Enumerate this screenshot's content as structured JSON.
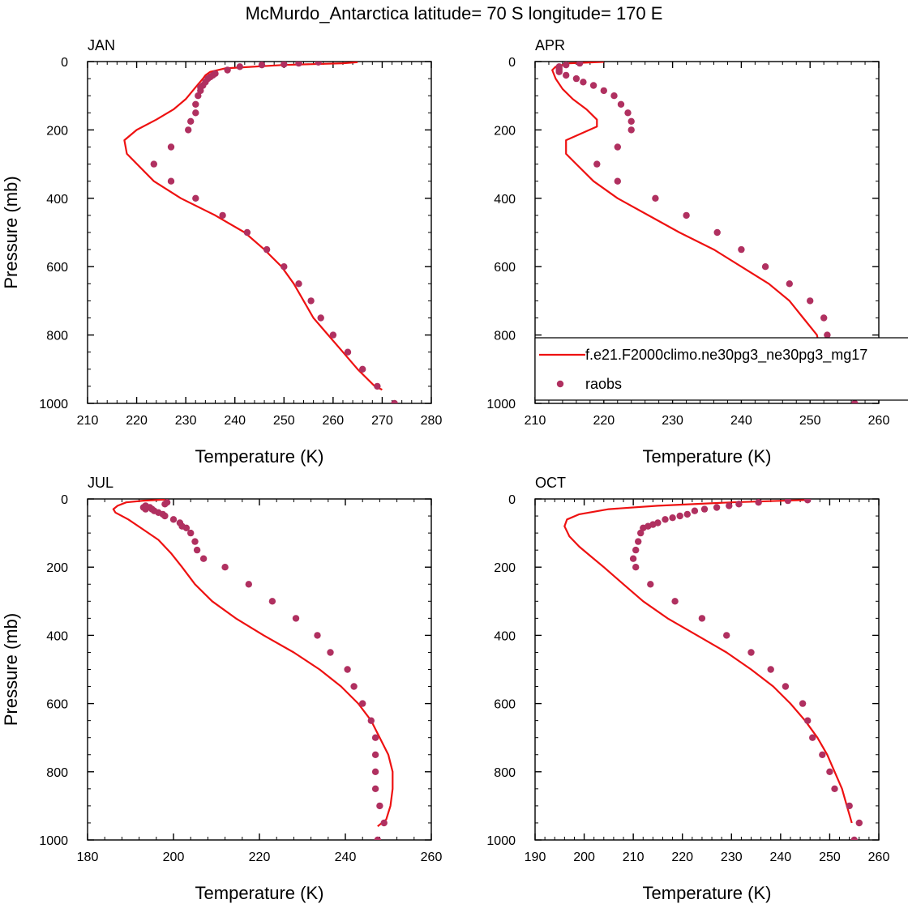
{
  "title": "McMurdo_Antarctica  latitude= 70 S longitude= 170 E",
  "colors": {
    "model_line": "#ee1111",
    "raobs_marker": "#b03060",
    "axis": "#000000"
  },
  "legend": {
    "items": [
      {
        "label": "f.e21.F2000climo.ne30pg3_ne30pg3_mg17",
        "style": "line"
      },
      {
        "label": "raobs",
        "style": "marker"
      }
    ]
  },
  "chart_data": [
    {
      "type": "line",
      "panel_label": "JAN",
      "xlabel": "Temperature (K)",
      "ylabel": "Pressure (mb)",
      "xlim": [
        210,
        280
      ],
      "ylim": [
        1000,
        0
      ],
      "y_reversed": true,
      "xticks": [
        210,
        220,
        230,
        240,
        250,
        260,
        270,
        280
      ],
      "yticks": [
        0,
        200,
        400,
        600,
        800,
        1000
      ],
      "series": [
        {
          "name": "f.e21.F2000climo.ne30pg3_ne30pg3_mg17",
          "style": "line",
          "x": [
            270.0,
            268.5,
            265.0,
            262.0,
            259.0,
            256.0,
            252.0,
            249.5,
            246.0,
            242.0,
            236.0,
            229.0,
            223.5,
            218.0,
            217.5,
            220.0,
            224.0,
            227.5,
            230.0,
            232.0,
            233.5,
            234.0,
            235.0,
            238.0,
            250.0,
            262.0,
            265.0
          ],
          "y": [
            960,
            950,
            900,
            850,
            800,
            750,
            650,
            600,
            550,
            500,
            450,
            400,
            350,
            270,
            230,
            200,
            170,
            140,
            110,
            75,
            50,
            40,
            30,
            20,
            10,
            5,
            2
          ]
        },
        {
          "name": "raobs",
          "style": "marker",
          "x": [
            272.5,
            269.0,
            266.0,
            263.0,
            260.0,
            257.5,
            255.5,
            253.0,
            250.0,
            246.5,
            242.5,
            237.5,
            232.0,
            227.0,
            223.5,
            227.0,
            230.5,
            231.0,
            232.0,
            232.0,
            232.5,
            233.0,
            233.0,
            233.5,
            234.0,
            234.5,
            235.0,
            235.5,
            236.0,
            238.5,
            241.0,
            245.5,
            250.0,
            253.0,
            257.0
          ],
          "y": [
            1000,
            950,
            900,
            850,
            800,
            750,
            700,
            650,
            600,
            550,
            500,
            450,
            400,
            350,
            300,
            250,
            200,
            175,
            150,
            125,
            100,
            85,
            75,
            70,
            60,
            50,
            45,
            40,
            35,
            25,
            15,
            10,
            8,
            5,
            2
          ]
        }
      ]
    },
    {
      "type": "line",
      "panel_label": "APR",
      "xlabel": "Temperature (K)",
      "ylabel": "",
      "xlim": [
        210,
        260
      ],
      "ylim": [
        1000,
        0
      ],
      "y_reversed": true,
      "xticks": [
        210,
        220,
        230,
        240,
        250,
        260
      ],
      "yticks": [
        0,
        200,
        400,
        600,
        800,
        1000
      ],
      "series": [
        {
          "name": "f.e21.F2000climo.ne30pg3_ne30pg3_mg17",
          "style": "line",
          "x": [
            252.0,
            251.0,
            251.5,
            251.0,
            249.0,
            247.0,
            244.0,
            240.0,
            236.0,
            231.0,
            226.5,
            222.0,
            218.5,
            216.0,
            214.5,
            214.5,
            219.0,
            219.0,
            217.5,
            215.5,
            214.0,
            213.0,
            212.5,
            213.0,
            215.0,
            220.0
          ],
          "y": [
            950,
            900,
            850,
            800,
            750,
            700,
            650,
            600,
            550,
            500,
            450,
            400,
            350,
            300,
            270,
            230,
            190,
            170,
            140,
            110,
            80,
            50,
            25,
            15,
            5,
            1
          ]
        },
        {
          "name": "raobs",
          "style": "marker",
          "x": [
            256.5,
            256.0,
            254.0,
            252.5,
            252.5,
            252.0,
            250.0,
            247.0,
            243.5,
            240.0,
            236.5,
            232.0,
            227.5,
            222.0,
            219.0,
            222.0,
            224.0,
            224.0,
            223.5,
            222.5,
            221.5,
            220.0,
            218.5,
            217.0,
            216.0,
            214.5,
            213.5,
            213.5,
            213.5,
            213.5,
            214.5,
            216.5
          ],
          "y": [
            1000,
            950,
            900,
            850,
            800,
            750,
            700,
            650,
            600,
            550,
            500,
            450,
            400,
            350,
            300,
            250,
            200,
            175,
            150,
            125,
            100,
            85,
            70,
            60,
            50,
            40,
            30,
            25,
            20,
            15,
            10,
            5
          ]
        }
      ]
    },
    {
      "type": "line",
      "panel_label": "JUL",
      "xlabel": "Temperature (K)",
      "ylabel": "Pressure (mb)",
      "xlim": [
        180,
        260
      ],
      "ylim": [
        1000,
        0
      ],
      "y_reversed": true,
      "xticks": [
        180,
        200,
        220,
        240,
        260
      ],
      "yticks": [
        0,
        200,
        400,
        600,
        800,
        1000
      ],
      "series": [
        {
          "name": "f.e21.F2000climo.ne30pg3_ne30pg3_mg17",
          "style": "line",
          "x": [
            247.5,
            249.5,
            250.5,
            251.0,
            251.0,
            250.0,
            248.0,
            246.0,
            243.0,
            239.0,
            234.0,
            228.0,
            221.0,
            214.5,
            209.0,
            205.0,
            202.0,
            199.5,
            196.5,
            193.0,
            189.5,
            186.5,
            186.0,
            187.0,
            189.0,
            193.0,
            198.0
          ],
          "y": [
            960,
            940,
            900,
            850,
            800,
            750,
            700,
            650,
            600,
            550,
            500,
            450,
            400,
            350,
            300,
            250,
            200,
            160,
            120,
            90,
            60,
            40,
            30,
            20,
            10,
            5,
            2
          ]
        },
        {
          "name": "raobs",
          "style": "marker",
          "x": [
            247.5,
            249.0,
            248.0,
            247.0,
            247.0,
            247.0,
            247.0,
            246.0,
            244.0,
            242.0,
            240.5,
            236.5,
            233.5,
            228.5,
            223.0,
            217.5,
            212.0,
            207.0,
            205.5,
            205.0,
            204.0,
            203.0,
            202.0,
            201.5,
            200.0,
            198.0,
            197.5,
            196.5,
            195.5,
            195.0,
            194.5,
            194.0,
            193.5,
            193.0,
            193.5,
            198.0,
            198.5
          ],
          "y": [
            1000,
            950,
            900,
            850,
            800,
            750,
            700,
            650,
            600,
            550,
            500,
            450,
            400,
            350,
            300,
            250,
            200,
            175,
            150,
            125,
            100,
            85,
            80,
            70,
            60,
            50,
            45,
            40,
            35,
            30,
            25,
            25,
            20,
            25,
            30,
            15,
            10
          ]
        }
      ]
    },
    {
      "type": "line",
      "panel_label": "OCT",
      "xlabel": "Temperature (K)",
      "ylabel": "",
      "xlim": [
        190,
        260
      ],
      "ylim": [
        1000,
        0
      ],
      "y_reversed": true,
      "xticks": [
        190,
        200,
        210,
        220,
        230,
        240,
        250,
        260
      ],
      "yticks": [
        0,
        200,
        400,
        600,
        800,
        1000
      ],
      "series": [
        {
          "name": "f.e21.F2000climo.ne30pg3_ne30pg3_mg17",
          "style": "line",
          "x": [
            254.5,
            253.5,
            252.5,
            251.0,
            249.5,
            247.5,
            245.0,
            242.0,
            238.5,
            234.0,
            229.0,
            223.0,
            217.0,
            212.0,
            208.0,
            204.0,
            201.5,
            199.0,
            197.0,
            196.0,
            196.5,
            199.0,
            205.0,
            215.0,
            230.0,
            245.0
          ],
          "y": [
            950,
            900,
            850,
            800,
            750,
            700,
            650,
            600,
            550,
            500,
            450,
            400,
            350,
            300,
            250,
            200,
            170,
            140,
            110,
            80,
            60,
            45,
            30,
            20,
            10,
            3
          ]
        },
        {
          "name": "raobs",
          "style": "marker",
          "x": [
            255.0,
            256.0,
            254.0,
            251.0,
            250.0,
            248.5,
            246.5,
            245.5,
            244.5,
            241.0,
            238.0,
            234.0,
            229.0,
            224.0,
            218.5,
            213.5,
            210.5,
            210.0,
            210.5,
            211.0,
            211.5,
            212.0,
            213.0,
            214.0,
            215.0,
            216.5,
            218.0,
            219.5,
            221.0,
            222.5,
            224.5,
            227.0,
            229.5,
            231.5,
            235.5,
            241.5,
            245.5
          ],
          "y": [
            1000,
            950,
            900,
            850,
            800,
            750,
            700,
            650,
            600,
            550,
            500,
            450,
            400,
            350,
            300,
            250,
            200,
            175,
            150,
            125,
            100,
            85,
            80,
            75,
            70,
            60,
            55,
            50,
            45,
            35,
            30,
            25,
            20,
            15,
            10,
            5,
            3
          ]
        }
      ]
    }
  ]
}
